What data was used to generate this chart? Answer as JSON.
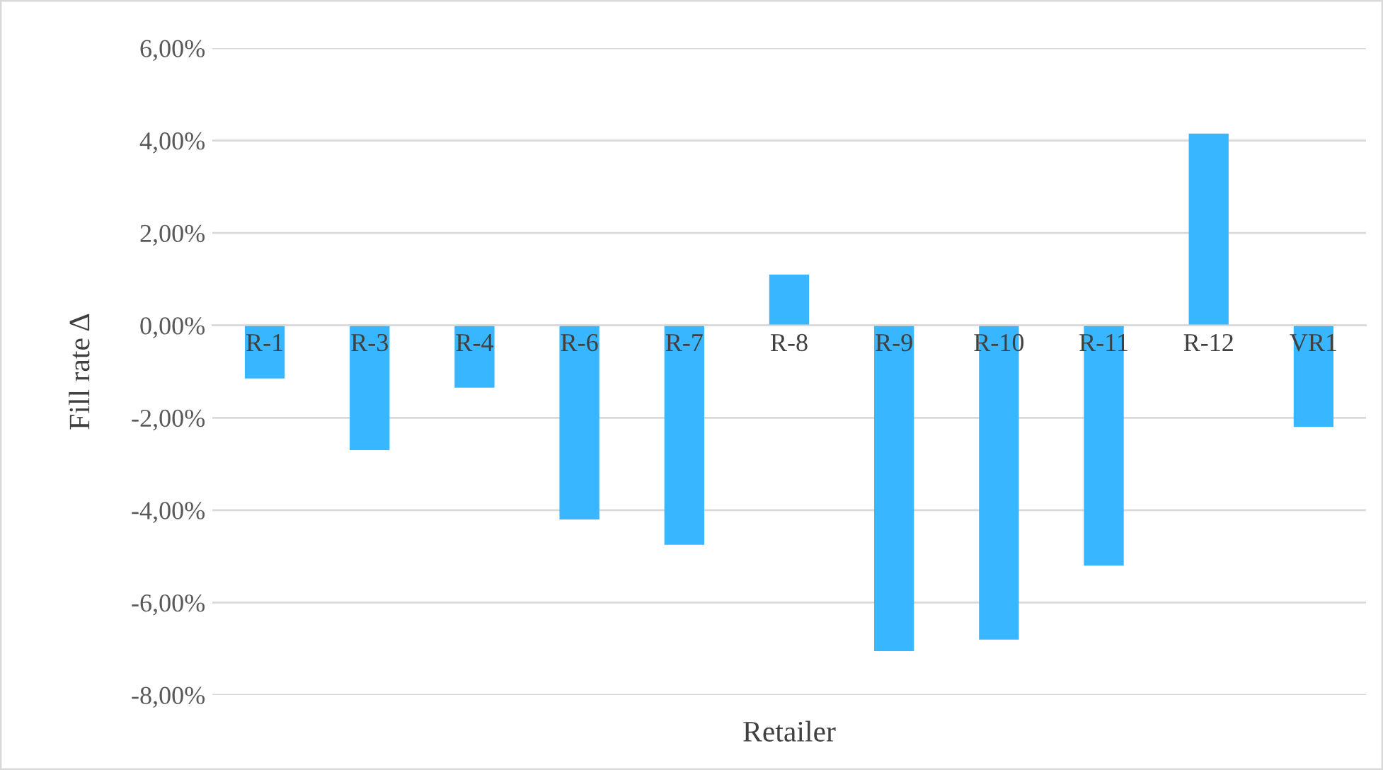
{
  "chart_data": {
    "type": "bar",
    "xlabel": "Retailer",
    "ylabel": "Fill rate Δ",
    "categories": [
      "R-1",
      "R-3",
      "R-4",
      "R-6",
      "R-7",
      "R-8",
      "R-9",
      "R-10",
      "R-11",
      "R-12",
      "VR1"
    ],
    "values": [
      -1.15,
      -2.7,
      -1.35,
      -4.2,
      -4.75,
      1.1,
      -7.05,
      -6.8,
      -5.2,
      4.15,
      -2.2
    ],
    "color": "#38b6ff",
    "ylim": [
      -8,
      6
    ],
    "yticks": [
      {
        "value": -8,
        "label": "-8,00%"
      },
      {
        "value": -6,
        "label": "-6,00%"
      },
      {
        "value": -4,
        "label": "-4,00%"
      },
      {
        "value": -2,
        "label": "-2,00%"
      },
      {
        "value": 0,
        "label": "0,00%"
      },
      {
        "value": 2,
        "label": "2,00%"
      },
      {
        "value": 4,
        "label": "4,00%"
      },
      {
        "value": 6,
        "label": "6,00%"
      }
    ],
    "grid": "y",
    "legend": false
  }
}
